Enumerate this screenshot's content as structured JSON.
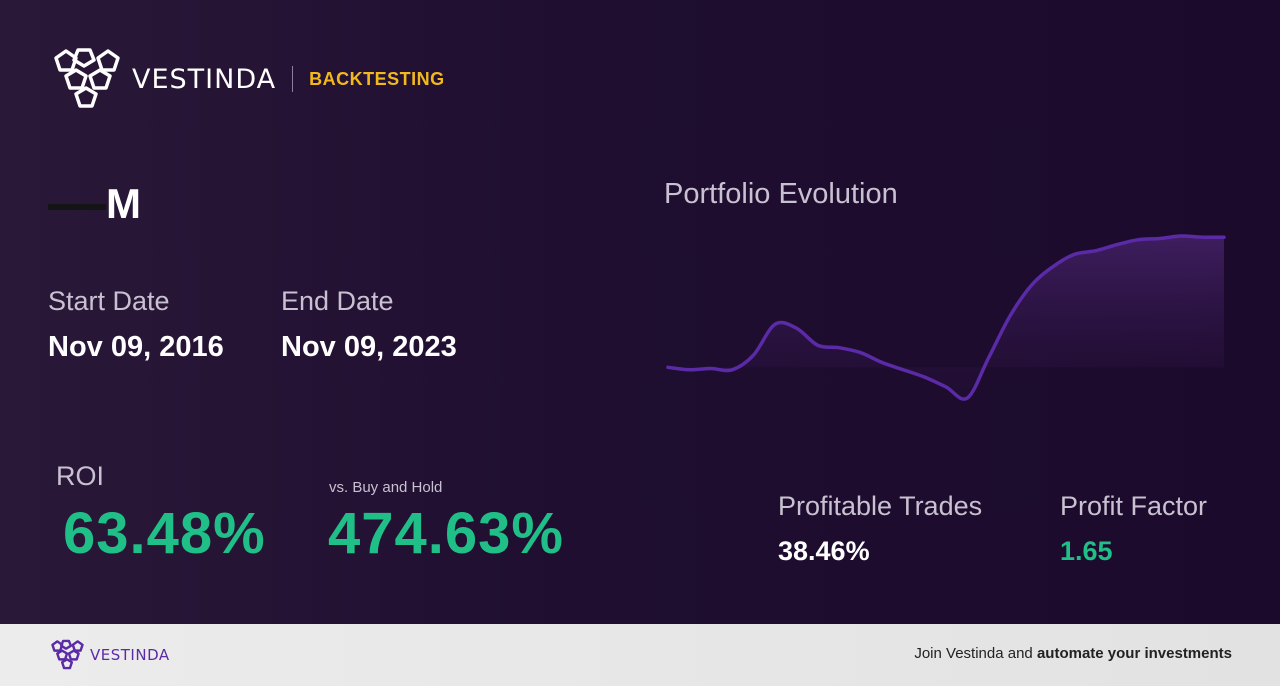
{
  "brand": {
    "name": "VESTINDA",
    "tag": "BACKTESTING",
    "tag_color": "#f2b91f"
  },
  "asset": {
    "ticker": "M"
  },
  "dates": {
    "start_label": "Start Date",
    "start_value": "Nov 09, 2016",
    "end_label": "End Date",
    "end_value": "Nov 09, 2023"
  },
  "roi": {
    "label": "ROI",
    "value": "63.48%"
  },
  "vs_hold": {
    "label": "vs. Buy and Hold",
    "value": "474.63%"
  },
  "stats": {
    "profitable_label": "Profitable Trades",
    "profitable_value": "38.46%",
    "factor_label": "Profit Factor",
    "factor_value": "1.65"
  },
  "chart": {
    "title": "Portfolio Evolution",
    "line_color": "#5b2aa7"
  },
  "chart_data": {
    "type": "line",
    "title": "Portfolio Evolution",
    "xlabel": "",
    "ylabel": "",
    "grid": false,
    "series": [
      {
        "values": [
          118,
          116,
          117,
          116,
          128,
          153,
          150,
          136,
          134,
          130,
          122,
          116,
          110,
          102,
          93,
          126,
          160,
          185,
          200,
          210,
          213,
          218,
          222,
          223,
          225,
          224,
          224
        ]
      }
    ]
  },
  "footer": {
    "brand": "VESTINDA",
    "cta_plain": "Join Vestinda and",
    "cta_bold": "automate your investments"
  },
  "colors": {
    "accent_green": "#1fbf87",
    "bg": "#1f0e30",
    "footer_bg": "#e8e8e8"
  }
}
